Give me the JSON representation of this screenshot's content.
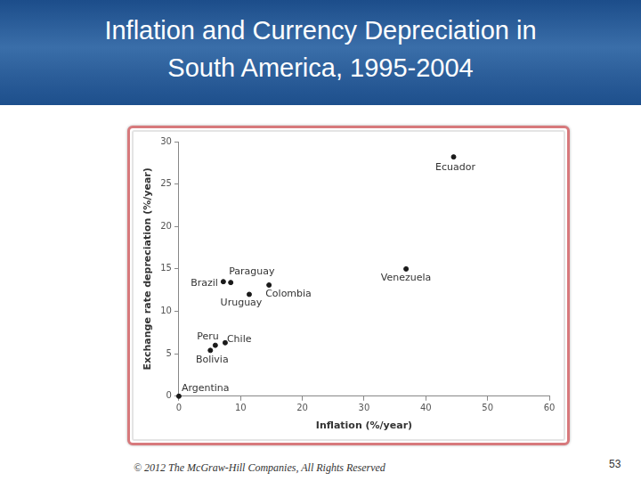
{
  "chart_data": {
    "type": "scatter",
    "title": "Inflation and Currency Depreciation in South America, 1995-2004",
    "x_label": "Inflation (%/year)",
    "y_label": "Exchange rate depreciation (%/year)",
    "point_labels": [
      "Ecuador",
      "Venezuela",
      "Paraguay",
      "Brazil",
      "Uruguay",
      "Colombia",
      "Peru",
      "Chile",
      "Bolivia",
      "Argentina"
    ],
    "x": [
      44.5,
      36.8,
      8.4,
      7.2,
      11.4,
      14.6,
      5.9,
      7.5,
      5.1,
      0
    ],
    "values": [
      28.2,
      15.0,
      13.4,
      13.5,
      12.0,
      13.1,
      6.0,
      6.3,
      5.4,
      0
    ],
    "color": "#1a1a1a",
    "marker": "circle",
    "xlim": [
      0,
      60
    ],
    "xticks": [
      0,
      10,
      20,
      30,
      40,
      50,
      60
    ],
    "ylim": [
      0,
      30
    ],
    "yticks": [
      0,
      5,
      10,
      15,
      20,
      25,
      30
    ],
    "grid": false
  },
  "footer": "© 2012 The McGraw-Hill Companies, All Rights Reserved",
  "page_number": 53
}
